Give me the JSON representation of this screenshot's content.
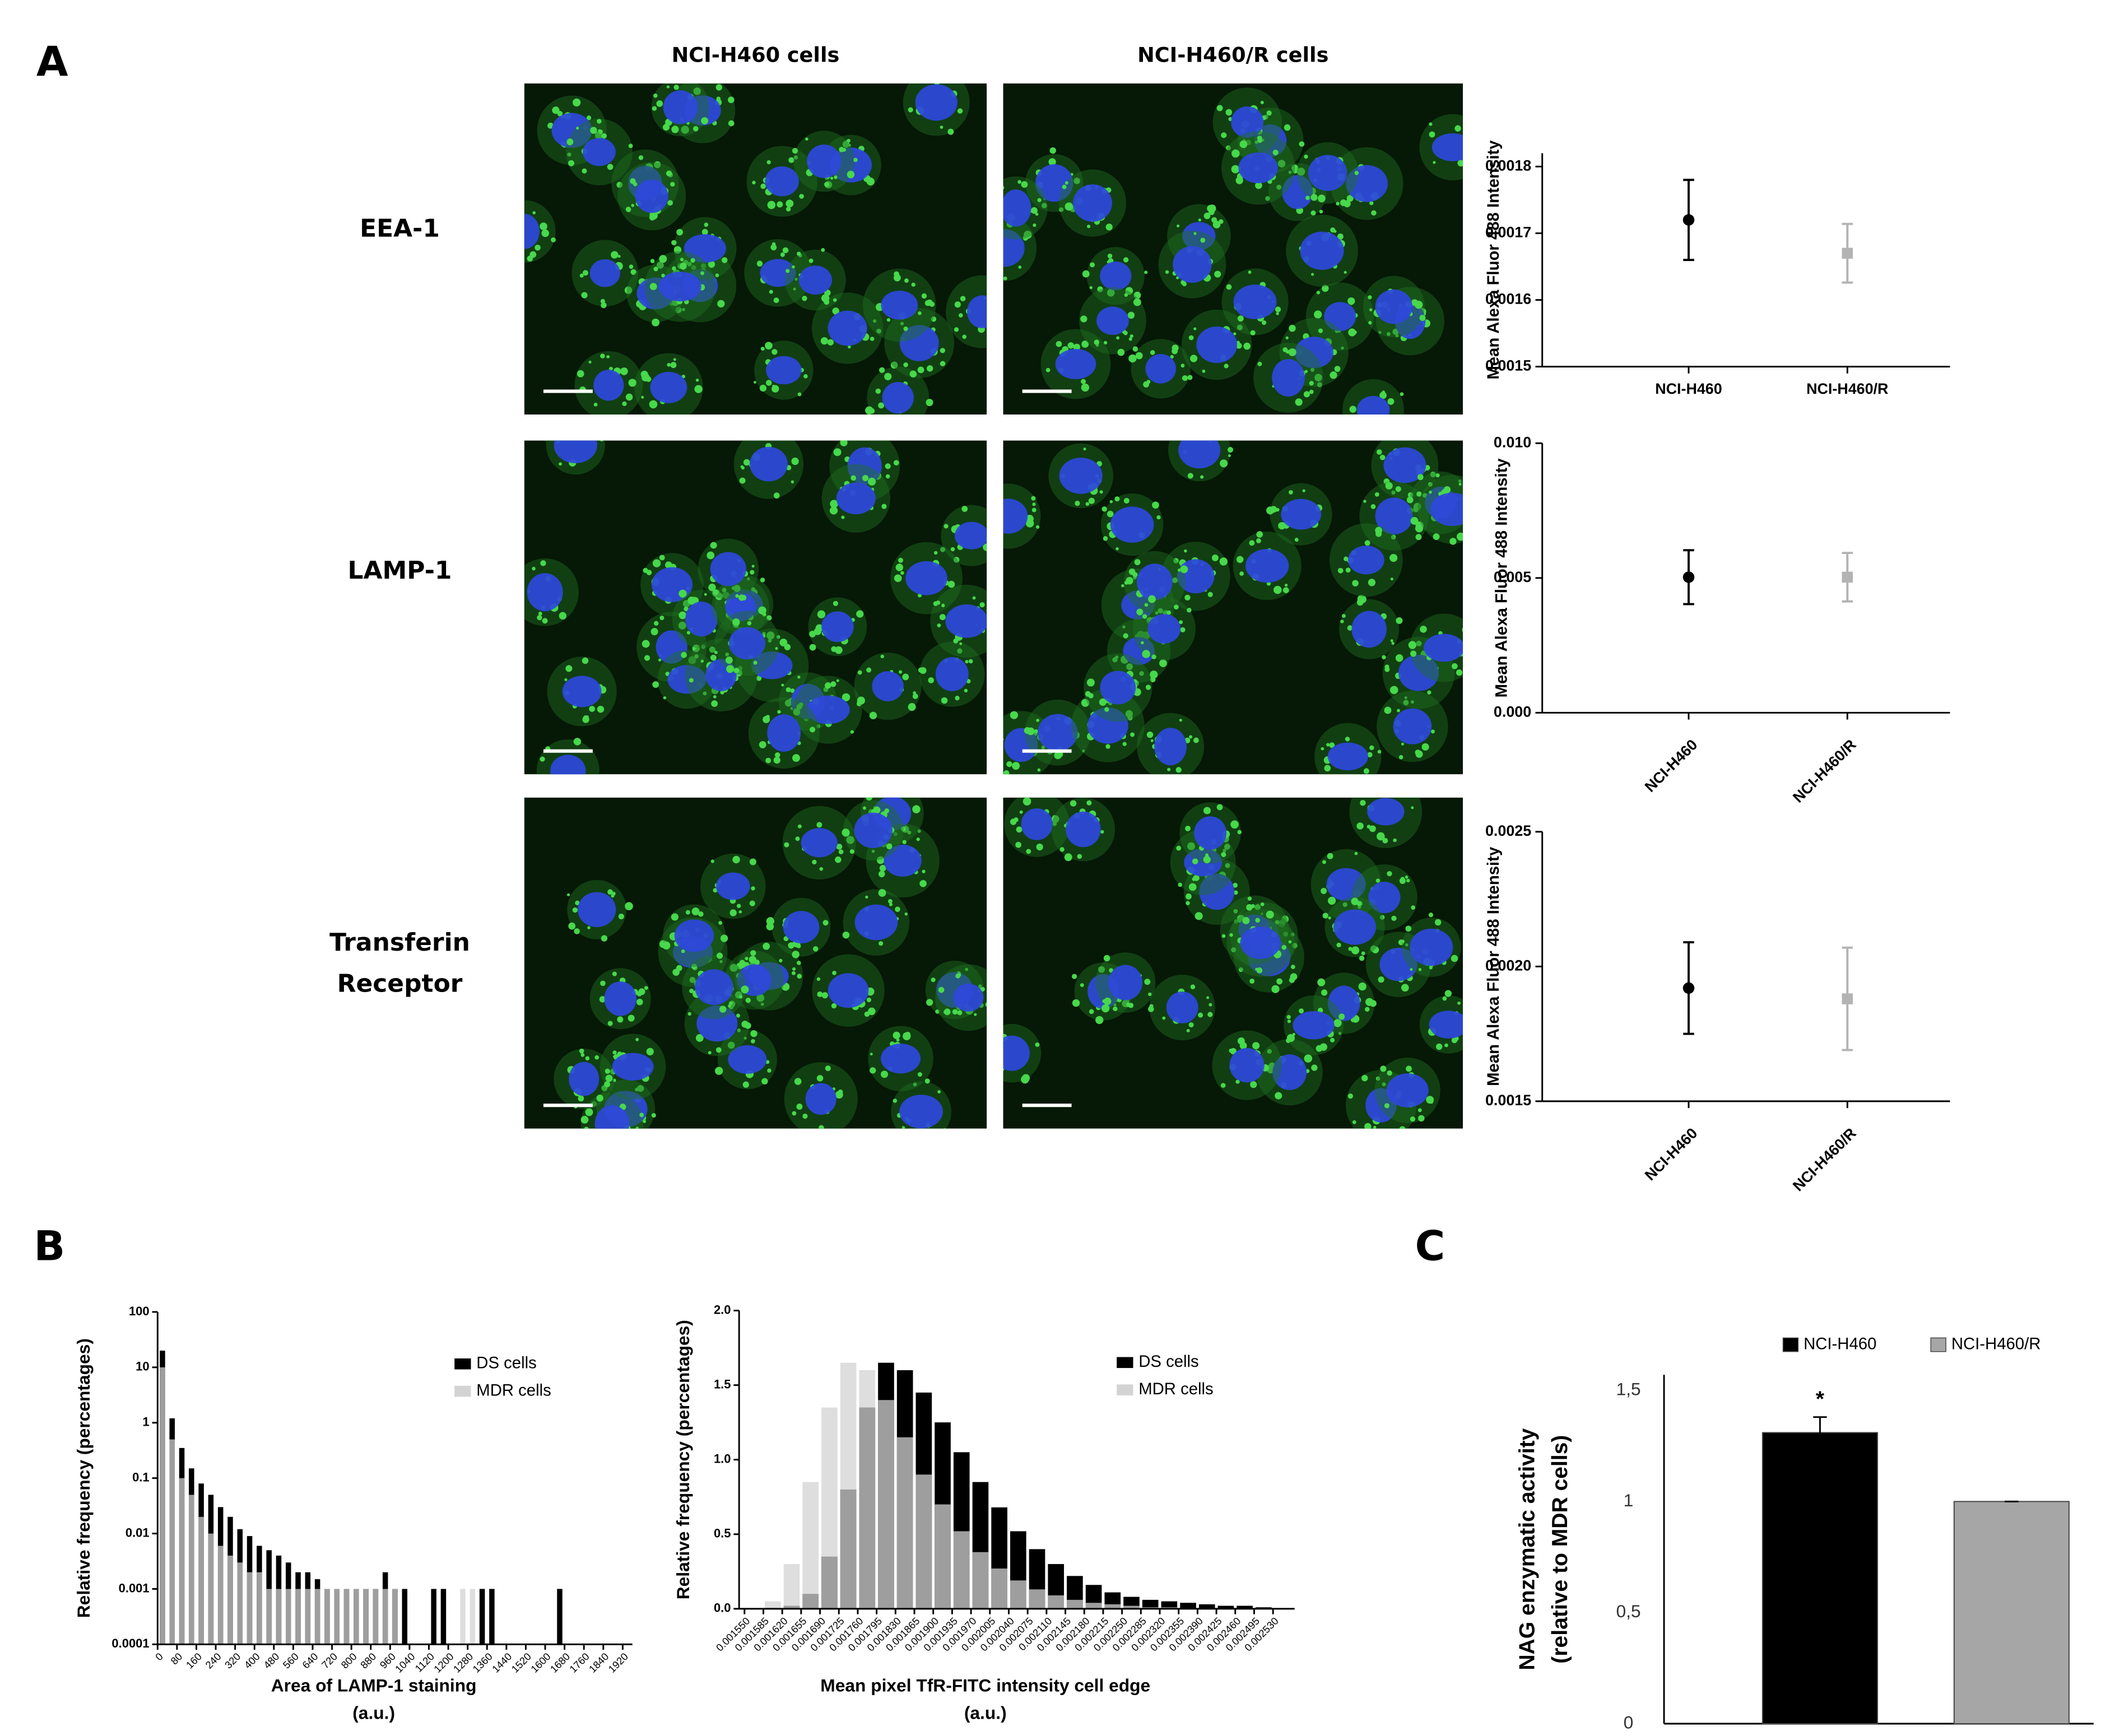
{
  "panel_labels": [
    "A",
    "B",
    "C"
  ],
  "panel_a": {
    "column_headers": [
      "NCI-H460 cells",
      "NCI-H460/R cells"
    ],
    "row_labels": [
      [
        "EEA-1"
      ],
      [
        "LAMP-1"
      ],
      [
        "Transferin",
        "Receptor"
      ]
    ]
  },
  "chart_data": [
    {
      "type": "errorbar",
      "ylabel": "Mean Alexa Fluor 488 Intensity",
      "categories": [
        "NCI-H460",
        "NCI-H460/R"
      ],
      "values": [
        0.00172,
        0.00167
      ],
      "errors": [
        6e-05,
        4.4e-05
      ],
      "colors": [
        "#000000",
        "#b3b3b3"
      ],
      "markers": [
        "circle",
        "square"
      ],
      "ylim": [
        0.0015,
        0.00182
      ],
      "yticks": [
        0.0015,
        0.0016,
        0.0017,
        0.0018
      ]
    },
    {
      "type": "errorbar",
      "ylabel": "Mean Alexa Fluor 488 Intensity",
      "categories": [
        "NCI-H460",
        "NCI-H460/R"
      ],
      "values": [
        0.00503,
        0.00503
      ],
      "errors": [
        0.001,
        0.0009
      ],
      "colors": [
        "#000000",
        "#b3b3b3"
      ],
      "markers": [
        "circle",
        "square"
      ],
      "ylim": [
        0,
        0.01
      ],
      "yticks": [
        {
          "value": 0,
          "label": "0.000"
        },
        0.005,
        {
          "value": 0.01,
          "label": "0.010"
        }
      ]
    },
    {
      "type": "errorbar",
      "ylabel": "Mean Alexa Fluor 488 Intensity",
      "categories": [
        "NCI-H460",
        "NCI-H460/R"
      ],
      "values": [
        0.00192,
        0.00188
      ],
      "errors": [
        0.00017,
        0.00019
      ],
      "colors": [
        "#000000",
        "#b3b3b3"
      ],
      "markers": [
        "circle",
        "square"
      ],
      "ylim": [
        0.0015,
        0.0025
      ],
      "yticks": [
        0.0015,
        {
          "value": 0.002,
          "label": "0.0020"
        },
        0.0025
      ]
    },
    {
      "type": "histogram",
      "ylabel": "Relative frequency (percentages)",
      "xlabel": [
        "Area of LAMP-1 staining",
        "(a.u.)"
      ],
      "log_y": true,
      "bins": [
        0,
        40,
        80,
        120,
        160,
        200,
        240,
        280,
        320,
        360,
        400,
        440,
        480,
        520,
        560,
        600,
        640,
        680,
        720,
        760,
        800,
        840,
        880,
        920,
        960,
        1000,
        1040,
        1080,
        1120,
        1160,
        1200,
        1240,
        1280,
        1320,
        1360,
        1400,
        1440,
        1480,
        1520,
        1560,
        1600,
        1640,
        1680
      ],
      "series": [
        {
          "name": "DS cells",
          "color": "#000000",
          "values": [
            20,
            1.2,
            0.35,
            0.15,
            0.08,
            0.05,
            0.03,
            0.02,
            0.012,
            0.009,
            0.006,
            0.005,
            0.004,
            0.003,
            0.002,
            0.002,
            0.0015,
            0.001,
            0.001,
            0.001,
            0.001,
            0.001,
            0.001,
            0.002,
            0.001,
            0.001,
            null,
            null,
            0.001,
            0.001,
            null,
            null,
            null,
            0.001,
            0.001,
            null,
            null,
            null,
            null,
            null,
            null,
            0.001
          ]
        },
        {
          "name": "MDR cells",
          "color": "#d3d3d3",
          "values": [
            10,
            0.5,
            0.1,
            0.05,
            0.02,
            0.01,
            0.006,
            0.004,
            0.003,
            0.002,
            0.002,
            0.001,
            0.001,
            0.001,
            0.001,
            0.001,
            0.001,
            0.001,
            0.001,
            0.001,
            0.001,
            0.001,
            0.001,
            0.001,
            0.001,
            null,
            null,
            null,
            null,
            null,
            null,
            0.001,
            0.001,
            null,
            null,
            null,
            null,
            null,
            null,
            null,
            null,
            null
          ]
        }
      ],
      "xlim": [
        0,
        1960
      ],
      "xticks": [
        0,
        80,
        160,
        240,
        320,
        400,
        480,
        560,
        640,
        720,
        800,
        880,
        960,
        1040,
        1120,
        1200,
        1280,
        1360,
        1440,
        1520,
        1600,
        1680,
        1760,
        1840,
        1920
      ],
      "ylim": [
        0.0001,
        100
      ],
      "yticks": [
        0.0001,
        0.001,
        0.01,
        0.1,
        1,
        10,
        100
      ],
      "legend": "upper right"
    },
    {
      "type": "histogram",
      "ylabel": "Relative frequency (percentages)",
      "xlabel": [
        "Mean pixel TfR-FITC intensity cell edge",
        "(a.u.)"
      ],
      "log_y": false,
      "bins": [
        0.00155,
        0.001585,
        0.00162,
        0.001655,
        0.00169,
        0.001725,
        0.00176,
        0.001795,
        0.00183,
        0.001865,
        0.0019,
        0.001935,
        0.00197,
        0.002005,
        0.00204,
        0.002075,
        0.00211,
        0.002145,
        0.00218,
        0.002215,
        0.00225,
        0.002285,
        0.00232,
        0.002355,
        0.00239,
        0.002425,
        0.00246,
        0.002495,
        0.00253
      ],
      "series": [
        {
          "name": "DS cells",
          "color": "#000000",
          "values": [
            0,
            0,
            0.02,
            0.1,
            0.35,
            0.8,
            1.35,
            1.65,
            1.6,
            1.45,
            1.25,
            1.05,
            0.85,
            0.68,
            0.52,
            0.4,
            0.3,
            0.22,
            0.16,
            0.11,
            0.08,
            0.06,
            0.05,
            0.04,
            0.03,
            0.02,
            0.02,
            0.01
          ]
        },
        {
          "name": "MDR cells",
          "color": "#d3d3d3",
          "values": [
            0,
            0.05,
            0.3,
            0.85,
            1.35,
            1.65,
            1.6,
            1.4,
            1.15,
            0.9,
            0.7,
            0.52,
            0.38,
            0.27,
            0.19,
            0.13,
            0.09,
            0.06,
            0.04,
            0.03,
            0.02,
            0.01,
            0.01,
            0,
            0,
            0,
            0,
            0
          ]
        }
      ],
      "xlim": [
        0.00154,
        0.00257
      ],
      "xticks": [
        {
          "value": 0.00155,
          "label": "0.001550"
        },
        0.001585,
        {
          "value": 0.00162,
          "label": "0.001620"
        },
        0.001655,
        {
          "value": 0.00169,
          "label": "0.001690"
        },
        0.001725,
        {
          "value": 0.00176,
          "label": "0.001760"
        },
        0.001795,
        {
          "value": 0.00183,
          "label": "0.001830"
        },
        0.001865,
        {
          "value": 0.0019,
          "label": "0.001900"
        },
        0.001935,
        {
          "value": 0.00197,
          "label": "0.001970"
        },
        0.002005,
        {
          "value": 0.00204,
          "label": "0.002040"
        },
        0.002075,
        {
          "value": 0.00211,
          "label": "0.002110"
        },
        0.002145,
        {
          "value": 0.00218,
          "label": "0.002180"
        },
        0.002215,
        {
          "value": 0.00225,
          "label": "0.002250"
        },
        0.002285,
        {
          "value": 0.00232,
          "label": "0.002320"
        },
        0.002355,
        {
          "value": 0.00239,
          "label": "0.002390"
        },
        0.002425,
        {
          "value": 0.00246,
          "label": "0.002460"
        },
        0.002495,
        {
          "value": 0.00253,
          "label": "0.002530"
        }
      ],
      "ylim": [
        0,
        2
      ],
      "yticks": [
        {
          "value": 0,
          "label": "0.0"
        },
        0.5,
        {
          "value": 1,
          "label": "1.0"
        },
        1.5,
        {
          "value": 2,
          "label": "2.0"
        }
      ],
      "legend": "upper right"
    },
    {
      "type": "bar",
      "ylabel": [
        "NAG enzymatic activity",
        "(relative to MDR cells)"
      ],
      "series": [
        {
          "name": "NCI-H460",
          "color": "#000000",
          "values": [
            1.31
          ],
          "errors": [
            0.07
          ]
        },
        {
          "name": "NCI-H460/R",
          "color": "#a6a6a6",
          "values": [
            1.0
          ],
          "errors": [
            0
          ]
        }
      ],
      "annotations": [
        "*"
      ],
      "ylim": [
        0,
        1.57
      ],
      "yticks": [
        0,
        {
          "value": 0.5,
          "label": "0,5"
        },
        1,
        {
          "value": 1.5,
          "label": "1,5"
        }
      ],
      "legend": "upper center"
    }
  ]
}
